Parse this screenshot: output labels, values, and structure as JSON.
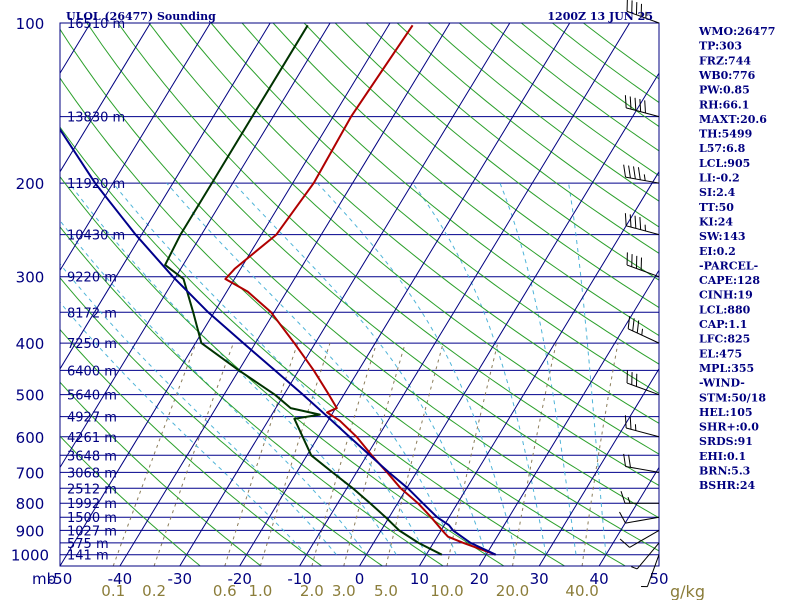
{
  "header": {
    "station": "ULOL (26477) Sounding",
    "valid_time": "1200Z 13 JUN 25"
  },
  "units": {
    "pressure_unit": "mb",
    "mixing_ratio_unit": "g/kg"
  },
  "colors": {
    "background": "#ffffff",
    "frame": "#000080",
    "isobar": "#00008b",
    "isotherm": "#000080",
    "dry_adiabat": "#2ca02c",
    "moist_adiabat": "#4fb4d8",
    "mixing_ratio": "#8b7d5a",
    "temperature": "#b00000",
    "dewpoint": "#003300",
    "parcel": "#00008b"
  },
  "side_indices": [
    "WMO:26477",
    "TP:303",
    "FRZ:744",
    "WB0:776",
    "PW:0.85",
    "RH:66.1",
    "MAXT:20.6",
    "TH:5499",
    "L57:6.8",
    "LCL:905",
    "LI:-0.2",
    "SI:2.4",
    "TT:50",
    "KI:24",
    "SW:143",
    "EI:0.2",
    "-PARCEL-",
    "CAPE:128",
    "CINH:19",
    "LCL:880",
    "CAP:1.1",
    "LFC:825",
    "EL:475",
    "MPL:355",
    "-WIND-",
    "STM:50/18",
    "HEL:105",
    "SHR+:0.0",
    "SRDS:91",
    "EHI:0.1",
    "BRN:5.3",
    "BSHR:24"
  ],
  "chart_data": {
    "type": "line",
    "title": "ULOL (26477) Sounding",
    "subtitle": "1200Z 13 JUN 25",
    "x_axis": {
      "label": "",
      "range": [
        -50,
        50
      ],
      "ticks": [
        -50,
        -40,
        -30,
        -20,
        -10,
        0,
        10,
        20,
        30,
        40,
        50
      ],
      "tick_labels": [
        "-50",
        "-40",
        "-30",
        "-20",
        "-10",
        "0",
        "10",
        "20",
        "30",
        "40",
        "50"
      ]
    },
    "y_axis": {
      "label": "mb",
      "scale": "log",
      "range": [
        1050,
        100
      ],
      "ticks": [
        100,
        200,
        300,
        400,
        500,
        600,
        700,
        800,
        900,
        1000
      ],
      "tick_labels": [
        "100",
        "200",
        "300",
        "400",
        "500",
        "600",
        "700",
        "800",
        "900",
        "1000"
      ]
    },
    "mixing_ratio_labels": [
      "0.1",
      "0.2",
      "0.6",
      "1.0",
      "2.0",
      "3.0",
      "5.0",
      "10.0",
      "20.0",
      "40.0"
    ],
    "height_labels": [
      {
        "pressure": 100,
        "label": "16510 m"
      },
      {
        "pressure": 150,
        "label": "13830 m"
      },
      {
        "pressure": 200,
        "label": "11920 m"
      },
      {
        "pressure": 250,
        "label": "10430 m"
      },
      {
        "pressure": 300,
        "label": "9220 m"
      },
      {
        "pressure": 350,
        "label": "8172 m"
      },
      {
        "pressure": 400,
        "label": "7250 m"
      },
      {
        "pressure": 450,
        "label": "6400 m"
      },
      {
        "pressure": 500,
        "label": "5640 m"
      },
      {
        "pressure": 550,
        "label": "4927 m"
      },
      {
        "pressure": 600,
        "label": "4261 m"
      },
      {
        "pressure": 650,
        "label": "3648 m"
      },
      {
        "pressure": 700,
        "label": "3068 m"
      },
      {
        "pressure": 750,
        "label": "2512 m"
      },
      {
        "pressure": 800,
        "label": "1992 m"
      },
      {
        "pressure": 850,
        "label": "1500 m"
      },
      {
        "pressure": 900,
        "label": "1027 m"
      },
      {
        "pressure": 950,
        "label": "575 m"
      },
      {
        "pressure": 1000,
        "label": "141 m"
      }
    ],
    "series": [
      {
        "key": "temperature",
        "points": [
          {
            "p": 1000,
            "t": 21.6
          },
          {
            "p": 950,
            "t": 15.0
          },
          {
            "p": 925,
            "t": 11.8
          },
          {
            "p": 900,
            "t": 10.2
          },
          {
            "p": 850,
            "t": 7.0
          },
          {
            "p": 800,
            "t": 3.4
          },
          {
            "p": 750,
            "t": -1.0
          },
          {
            "p": 700,
            "t": -4.9
          },
          {
            "p": 650,
            "t": -9.2
          },
          {
            "p": 600,
            "t": -13.6
          },
          {
            "p": 560,
            "t": -18.0
          },
          {
            "p": 540,
            "t": -21.0
          },
          {
            "p": 530,
            "t": -19.8
          },
          {
            "p": 500,
            "t": -22.5
          },
          {
            "p": 450,
            "t": -27.5
          },
          {
            "p": 400,
            "t": -33.5
          },
          {
            "p": 350,
            "t": -40.5
          },
          {
            "p": 320,
            "t": -46.5
          },
          {
            "p": 303,
            "t": -51.5
          },
          {
            "p": 290,
            "t": -51.0
          },
          {
            "p": 250,
            "t": -47.5
          },
          {
            "p": 200,
            "t": -46.5
          },
          {
            "p": 150,
            "t": -47.0
          },
          {
            "p": 101,
            "t": -46.0
          }
        ]
      },
      {
        "key": "dewpoint",
        "points": [
          {
            "p": 1000,
            "t": 12.6
          },
          {
            "p": 950,
            "t": 7.5
          },
          {
            "p": 900,
            "t": 3.0
          },
          {
            "p": 850,
            "t": -0.6
          },
          {
            "p": 800,
            "t": -4.6
          },
          {
            "p": 750,
            "t": -9.0
          },
          {
            "p": 700,
            "t": -14.0
          },
          {
            "p": 650,
            "t": -19.3
          },
          {
            "p": 600,
            "t": -22.6
          },
          {
            "p": 555,
            "t": -25.8
          },
          {
            "p": 545,
            "t": -22.0
          },
          {
            "p": 530,
            "t": -27.5
          },
          {
            "p": 500,
            "t": -31.5
          },
          {
            "p": 450,
            "t": -40.0
          },
          {
            "p": 400,
            "t": -49.0
          },
          {
            "p": 350,
            "t": -53.5
          },
          {
            "p": 303,
            "t": -58.5
          },
          {
            "p": 285,
            "t": -63.0
          },
          {
            "p": 250,
            "t": -63.5
          },
          {
            "p": 200,
            "t": -63.5
          },
          {
            "p": 150,
            "t": -63.5
          },
          {
            "p": 101,
            "t": -63.5
          }
        ]
      },
      {
        "key": "parcel",
        "points": [
          {
            "p": 1000,
            "t": 21.6
          },
          {
            "p": 950,
            "t": 16.2
          },
          {
            "p": 900,
            "t": 12.0
          },
          {
            "p": 880,
            "t": 10.8
          },
          {
            "p": 850,
            "t": 8.0
          },
          {
            "p": 800,
            "t": 4.2
          },
          {
            "p": 750,
            "t": 0.2
          },
          {
            "p": 700,
            "t": -4.6
          },
          {
            "p": 650,
            "t": -9.5
          },
          {
            "p": 600,
            "t": -14.8
          },
          {
            "p": 550,
            "t": -20.5
          },
          {
            "p": 500,
            "t": -26.8
          },
          {
            "p": 450,
            "t": -34.0
          },
          {
            "p": 400,
            "t": -42.0
          },
          {
            "p": 350,
            "t": -51.0
          },
          {
            "p": 300,
            "t": -60.5
          },
          {
            "p": 250,
            "t": -71.0
          },
          {
            "p": 200,
            "t": -83.0
          },
          {
            "p": 150,
            "t": -97.0
          },
          {
            "p": 120,
            "t": -107.0
          },
          {
            "p": 105,
            "t": -112.0
          }
        ]
      }
    ],
    "winds": [
      {
        "p": 100,
        "dir": 290,
        "kt": 45
      },
      {
        "p": 150,
        "dir": 285,
        "kt": 50
      },
      {
        "p": 200,
        "dir": 280,
        "kt": 45
      },
      {
        "p": 250,
        "dir": 285,
        "kt": 45
      },
      {
        "p": 300,
        "dir": 290,
        "kt": 40
      },
      {
        "p": 400,
        "dir": 295,
        "kt": 35
      },
      {
        "p": 500,
        "dir": 290,
        "kt": 30
      },
      {
        "p": 600,
        "dir": 285,
        "kt": 25
      },
      {
        "p": 700,
        "dir": 280,
        "kt": 20
      },
      {
        "p": 800,
        "dir": 270,
        "kt": 15
      },
      {
        "p": 850,
        "dir": 260,
        "kt": 10
      },
      {
        "p": 900,
        "dir": 240,
        "kt": 10
      },
      {
        "p": 950,
        "dir": 220,
        "kt": 5
      },
      {
        "p": 1000,
        "dir": 200,
        "kt": 5
      }
    ],
    "grid": true,
    "legend": "none"
  }
}
